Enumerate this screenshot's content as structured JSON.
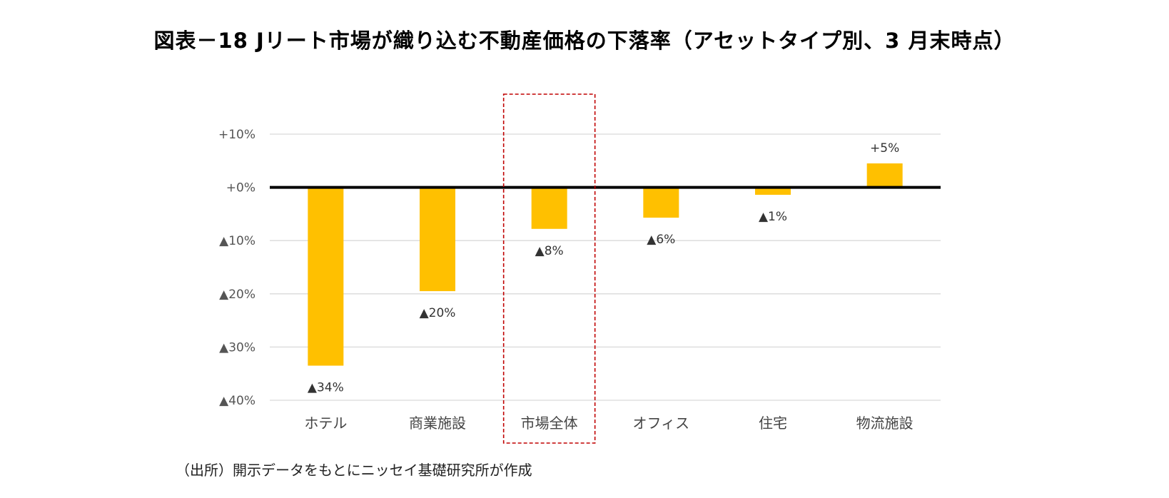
{
  "chart_data": {
    "type": "bar",
    "title": "図表－18 Jリート市場が織り込む不動産価格の下落率（アセットタイプ別、3 月末時点）",
    "categories": [
      "ホテル",
      "商業施設",
      "市場全体",
      "オフィス",
      "住宅",
      "物流施設"
    ],
    "values": [
      -33.5,
      -19.5,
      -7.8,
      -5.7,
      -1.4,
      4.5
    ],
    "data_labels": [
      "▲34%",
      "▲20%",
      "▲8%",
      "▲6%",
      "▲1%",
      "+5%"
    ],
    "ylim": [
      -40,
      10
    ],
    "y_ticks": [
      10,
      0,
      -10,
      -20,
      -30,
      -40
    ],
    "y_tick_labels": [
      "+10%",
      "+0%",
      "▲10%",
      "▲20%",
      "▲30%",
      "▲40%"
    ],
    "highlighted_category": "市場全体",
    "grid": true,
    "bar_color": "#FFC000",
    "zero_line_color": "#000000",
    "gridline_color": "#D9D9D9",
    "highlight_color": "#C00000"
  },
  "source_note": "（出所）開示データをもとにニッセイ基礎研究所が作成"
}
